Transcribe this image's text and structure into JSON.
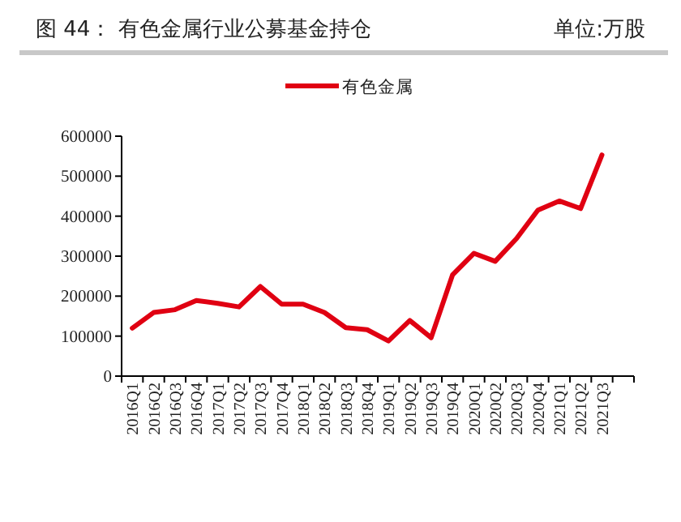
{
  "chart_data": {
    "type": "line",
    "title": "图 44：   有色金属行业公募基金持仓",
    "subtitle": "单位:万股",
    "categories": [
      "2016Q1",
      "2016Q2",
      "2016Q3",
      "2016Q4",
      "2017Q1",
      "2017Q2",
      "2017Q3",
      "2017Q4",
      "2018Q1",
      "2018Q2",
      "2018Q3",
      "2018Q4",
      "2019Q1",
      "2019Q2",
      "2019Q3",
      "2019Q4",
      "2020Q1",
      "2020Q2",
      "2020Q3",
      "2020Q4",
      "2021Q1",
      "2021Q2",
      "2021Q3",
      null
    ],
    "series": [
      {
        "name": "有色金属",
        "color": "#e00012",
        "values": [
          120000,
          159000,
          166000,
          189000,
          182000,
          173000,
          224000,
          180000,
          180000,
          159000,
          121000,
          116000,
          88000,
          139000,
          96000,
          253000,
          307000,
          287000,
          344000,
          415000,
          438000,
          419000,
          553000,
          null
        ]
      }
    ],
    "ylim": [
      0,
      600000
    ],
    "yticks": [
      0,
      100000,
      200000,
      300000,
      400000,
      500000,
      600000
    ],
    "grid": false,
    "legend": "top",
    "marker": "none",
    "line_style": "solid"
  }
}
